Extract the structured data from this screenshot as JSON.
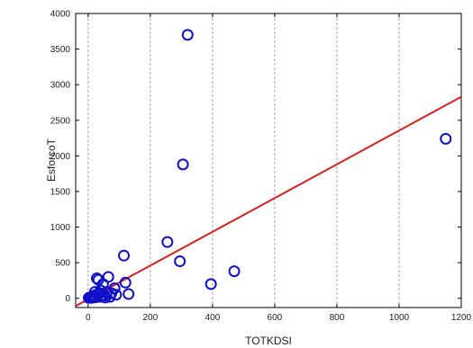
{
  "chart_data": {
    "type": "scatter",
    "title": "",
    "xlabel": "TOTKDSI",
    "ylabel": "EsforcoT",
    "xlim": [
      -40,
      1200
    ],
    "ylim": [
      -130,
      4000
    ],
    "x_ticks": [
      0,
      200,
      400,
      600,
      800,
      1000,
      1200
    ],
    "y_ticks": [
      0,
      500,
      1000,
      1500,
      2000,
      2500,
      3000,
      3500,
      4000
    ],
    "grid": "vertical dashed",
    "marker_color": "#1010c8",
    "fit_line_color": "#d42020",
    "points": [
      {
        "x": 2,
        "y": 5
      },
      {
        "x": 5,
        "y": 10
      },
      {
        "x": 8,
        "y": 15
      },
      {
        "x": 10,
        "y": 5
      },
      {
        "x": 12,
        "y": 20
      },
      {
        "x": 15,
        "y": 30
      },
      {
        "x": 18,
        "y": 10
      },
      {
        "x": 20,
        "y": 40
      },
      {
        "x": 22,
        "y": 90
      },
      {
        "x": 25,
        "y": 15
      },
      {
        "x": 28,
        "y": 280
      },
      {
        "x": 30,
        "y": 50
      },
      {
        "x": 33,
        "y": 260
      },
      {
        "x": 35,
        "y": 60
      },
      {
        "x": 38,
        "y": 20
      },
      {
        "x": 40,
        "y": 110
      },
      {
        "x": 45,
        "y": 30
      },
      {
        "x": 48,
        "y": 200
      },
      {
        "x": 52,
        "y": 40
      },
      {
        "x": 55,
        "y": 10
      },
      {
        "x": 60,
        "y": 90
      },
      {
        "x": 65,
        "y": 300
      },
      {
        "x": 70,
        "y": 20
      },
      {
        "x": 75,
        "y": 70
      },
      {
        "x": 85,
        "y": 140
      },
      {
        "x": 90,
        "y": 50
      },
      {
        "x": 115,
        "y": 600
      },
      {
        "x": 120,
        "y": 220
      },
      {
        "x": 130,
        "y": 60
      },
      {
        "x": 255,
        "y": 790
      },
      {
        "x": 295,
        "y": 520
      },
      {
        "x": 305,
        "y": 1880
      },
      {
        "x": 320,
        "y": 3700
      },
      {
        "x": 395,
        "y": 200
      },
      {
        "x": 470,
        "y": 380
      },
      {
        "x": 1150,
        "y": 2240
      }
    ],
    "fit_line": {
      "x": [
        -40,
        1200
      ],
      "y": [
        -110,
        2830
      ]
    }
  }
}
